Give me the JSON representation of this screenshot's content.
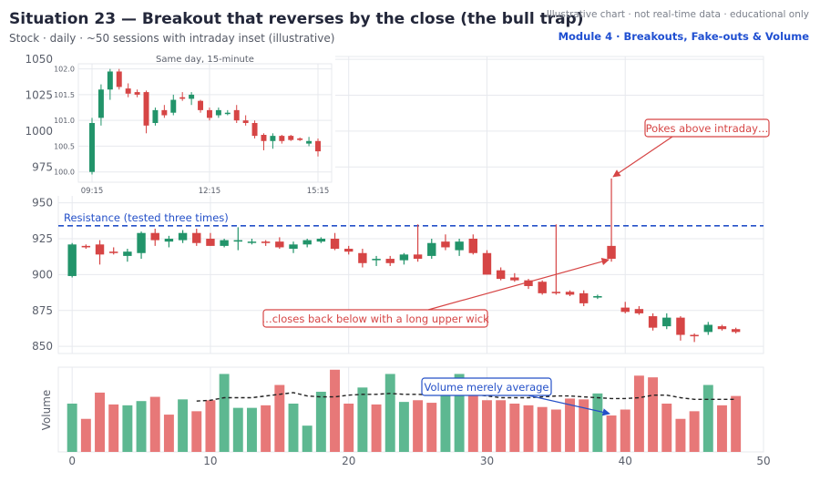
{
  "header": {
    "title": "Situation 23 — Breakout that reverses by the close (the bull trap)",
    "subtitle": "Stock · daily · ~50 sessions with intraday inset (illustrative)",
    "disclaimer": "Illustrative chart · not real-time data · educational only",
    "module": "Module 4 · Breakouts, Fake-outs & Volume"
  },
  "colors": {
    "up": "#22946a",
    "down": "#d64545",
    "vol_up": "#5db891",
    "vol_down": "#e77878",
    "resistance": "#2450c8",
    "annotation": "#d64545",
    "volume_note": "#2450c8",
    "grid": "#e7e9ee",
    "axis_text": "#5a5f6b"
  },
  "chart_data": [
    {
      "type": "candlestick",
      "name": "daily",
      "xlim": [
        -1,
        50
      ],
      "ylim": [
        845,
        1052
      ],
      "xticks": [
        0,
        10,
        20,
        30,
        40,
        50
      ],
      "yticks": [
        850,
        875,
        900,
        925,
        950,
        975,
        1000,
        1025,
        1050
      ],
      "grid": true,
      "candles": [
        {
          "x": 0,
          "o": 899,
          "h": 922,
          "l": 898,
          "c": 921
        },
        {
          "x": 1,
          "o": 920,
          "h": 921,
          "l": 918,
          "c": 919
        },
        {
          "x": 2,
          "o": 921,
          "h": 924,
          "l": 907,
          "c": 914
        },
        {
          "x": 3,
          "o": 916,
          "h": 919,
          "l": 914,
          "c": 915
        },
        {
          "x": 4,
          "o": 913,
          "h": 918,
          "l": 909,
          "c": 916
        },
        {
          "x": 5,
          "o": 915,
          "h": 930,
          "l": 911,
          "c": 929
        },
        {
          "x": 6,
          "o": 929,
          "h": 932,
          "l": 920,
          "c": 924
        },
        {
          "x": 7,
          "o": 923,
          "h": 927,
          "l": 919,
          "c": 925
        },
        {
          "x": 8,
          "o": 924,
          "h": 931,
          "l": 922,
          "c": 929
        },
        {
          "x": 9,
          "o": 929,
          "h": 932,
          "l": 920,
          "c": 922
        },
        {
          "x": 10,
          "o": 925,
          "h": 929,
          "l": 920,
          "c": 920
        },
        {
          "x": 11,
          "o": 920,
          "h": 925,
          "l": 919,
          "c": 924
        },
        {
          "x": 12,
          "o": 923,
          "h": 933,
          "l": 917,
          "c": 924
        },
        {
          "x": 13,
          "o": 923,
          "h": 925,
          "l": 921,
          "c": 923
        },
        {
          "x": 14,
          "o": 923,
          "h": 924,
          "l": 920,
          "c": 922
        },
        {
          "x": 15,
          "o": 923,
          "h": 926,
          "l": 918,
          "c": 919
        },
        {
          "x": 16,
          "o": 918,
          "h": 923,
          "l": 915,
          "c": 921
        },
        {
          "x": 17,
          "o": 921,
          "h": 925,
          "l": 919,
          "c": 924
        },
        {
          "x": 18,
          "o": 923,
          "h": 926,
          "l": 922,
          "c": 925
        },
        {
          "x": 19,
          "o": 925,
          "h": 929,
          "l": 917,
          "c": 918
        },
        {
          "x": 20,
          "o": 918,
          "h": 920,
          "l": 914,
          "c": 916
        },
        {
          "x": 21,
          "o": 915,
          "h": 918,
          "l": 905,
          "c": 908
        },
        {
          "x": 22,
          "o": 910,
          "h": 913,
          "l": 906,
          "c": 911
        },
        {
          "x": 23,
          "o": 911,
          "h": 913,
          "l": 906,
          "c": 908
        },
        {
          "x": 24,
          "o": 910,
          "h": 915,
          "l": 907,
          "c": 914
        },
        {
          "x": 25,
          "o": 914,
          "h": 935,
          "l": 909,
          "c": 911
        },
        {
          "x": 26,
          "o": 913,
          "h": 925,
          "l": 911,
          "c": 922
        },
        {
          "x": 27,
          "o": 923,
          "h": 928,
          "l": 917,
          "c": 919
        },
        {
          "x": 28,
          "o": 917,
          "h": 925,
          "l": 913,
          "c": 923
        },
        {
          "x": 29,
          "o": 925,
          "h": 928,
          "l": 914,
          "c": 915
        },
        {
          "x": 30,
          "o": 915,
          "h": 917,
          "l": 900,
          "c": 900
        },
        {
          "x": 31,
          "o": 903,
          "h": 905,
          "l": 896,
          "c": 897
        },
        {
          "x": 32,
          "o": 898,
          "h": 901,
          "l": 895,
          "c": 896
        },
        {
          "x": 33,
          "o": 896,
          "h": 897,
          "l": 890,
          "c": 892
        },
        {
          "x": 34,
          "o": 895,
          "h": 896,
          "l": 886,
          "c": 887
        },
        {
          "x": 35,
          "o": 888,
          "h": 935,
          "l": 886,
          "c": 887
        },
        {
          "x": 36,
          "o": 888,
          "h": 889,
          "l": 885,
          "c": 886
        },
        {
          "x": 37,
          "o": 887,
          "h": 889,
          "l": 878,
          "c": 880
        },
        {
          "x": 38,
          "o": 884,
          "h": 886,
          "l": 883,
          "c": 885
        },
        {
          "x": 39,
          "o": 920,
          "h": 967,
          "l": 909,
          "c": 911
        },
        {
          "x": 40,
          "o": 877,
          "h": 881,
          "l": 873,
          "c": 874
        },
        {
          "x": 41,
          "o": 876,
          "h": 878,
          "l": 872,
          "c": 873
        },
        {
          "x": 42,
          "o": 871,
          "h": 873,
          "l": 861,
          "c": 863
        },
        {
          "x": 43,
          "o": 864,
          "h": 873,
          "l": 862,
          "c": 870
        },
        {
          "x": 44,
          "o": 870,
          "h": 871,
          "l": 854,
          "c": 858
        },
        {
          "x": 45,
          "o": 858,
          "h": 859,
          "l": 853,
          "c": 857
        },
        {
          "x": 46,
          "o": 860,
          "h": 867,
          "l": 858,
          "c": 865
        },
        {
          "x": 47,
          "o": 864,
          "h": 865,
          "l": 861,
          "c": 862
        },
        {
          "x": 48,
          "o": 862,
          "h": 863,
          "l": 859,
          "c": 860
        }
      ],
      "resistance": {
        "value": 934,
        "label": "Resistance (tested three times)"
      },
      "annotations": [
        {
          "text": "Pokes above intraday…",
          "target_x": 39,
          "target_y": 967
        },
        {
          "text": "…closes back below with a long upper wick",
          "target_x": 39,
          "target_y": 911
        }
      ]
    },
    {
      "type": "bar",
      "name": "volume",
      "ylabel": "Volume",
      "xlim": [
        -1,
        50
      ],
      "ylim": [
        0,
        100
      ],
      "values": [
        57,
        39,
        70,
        56,
        55,
        60,
        65,
        44,
        62,
        48,
        61,
        92,
        52,
        52,
        55,
        79,
        57,
        31,
        71,
        97,
        57,
        76,
        56,
        92,
        59,
        61,
        58,
        81,
        92,
        76,
        61,
        61,
        57,
        55,
        53,
        50,
        63,
        62,
        69,
        43,
        50,
        90,
        88,
        57,
        39,
        48,
        79,
        55,
        66
      ],
      "up": [
        true,
        false,
        false,
        false,
        true,
        true,
        false,
        false,
        true,
        false,
        false,
        true,
        true,
        true,
        false,
        false,
        true,
        true,
        true,
        false,
        false,
        true,
        false,
        true,
        true,
        false,
        false,
        true,
        true,
        false,
        false,
        false,
        false,
        false,
        false,
        false,
        false,
        false,
        true,
        false,
        false,
        false,
        false,
        false,
        false,
        false,
        true,
        false,
        false
      ],
      "moving_average": [
        null,
        null,
        null,
        null,
        null,
        null,
        null,
        null,
        null,
        60,
        61,
        64,
        64,
        64,
        66,
        68,
        70,
        66,
        65,
        65,
        67,
        68,
        68,
        69,
        68,
        68,
        67,
        67,
        67,
        68,
        66,
        64,
        64,
        64,
        65,
        66,
        66,
        65,
        64,
        63,
        63,
        64,
        67,
        67,
        64,
        62,
        62,
        62,
        62
      ],
      "annotation": {
        "text": "Volume merely average",
        "target_x": 39
      }
    },
    {
      "type": "candlestick",
      "name": "intraday",
      "title": "Same day, 15-minute",
      "ylim": [
        99.8,
        102.1
      ],
      "yticks": [
        "102.0",
        "101.5",
        "101.0",
        "100.5",
        "100.0"
      ],
      "xticks": [
        "09:15",
        "12:15",
        "15:15"
      ],
      "candles": [
        {
          "o": 100.0,
          "h": 101.05,
          "l": 99.95,
          "c": 100.95
        },
        {
          "o": 101.05,
          "h": 101.7,
          "l": 100.9,
          "c": 101.6
        },
        {
          "o": 101.6,
          "h": 102.0,
          "l": 101.4,
          "c": 101.95
        },
        {
          "o": 101.95,
          "h": 102.0,
          "l": 101.6,
          "c": 101.65
        },
        {
          "o": 101.62,
          "h": 101.72,
          "l": 101.45,
          "c": 101.52
        },
        {
          "o": 101.55,
          "h": 101.6,
          "l": 101.45,
          "c": 101.5
        },
        {
          "o": 101.55,
          "h": 101.58,
          "l": 100.75,
          "c": 100.9
        },
        {
          "o": 100.95,
          "h": 101.25,
          "l": 100.9,
          "c": 101.2
        },
        {
          "o": 101.2,
          "h": 101.3,
          "l": 101.05,
          "c": 101.1
        },
        {
          "o": 101.15,
          "h": 101.5,
          "l": 101.1,
          "c": 101.4
        },
        {
          "o": 101.45,
          "h": 101.55,
          "l": 101.38,
          "c": 101.42
        },
        {
          "o": 101.42,
          "h": 101.55,
          "l": 101.3,
          "c": 101.5
        },
        {
          "o": 101.38,
          "h": 101.4,
          "l": 101.15,
          "c": 101.2
        },
        {
          "o": 101.2,
          "h": 101.25,
          "l": 101.0,
          "c": 101.05
        },
        {
          "o": 101.1,
          "h": 101.25,
          "l": 101.05,
          "c": 101.2
        },
        {
          "o": 101.15,
          "h": 101.2,
          "l": 101.1,
          "c": 101.15
        },
        {
          "o": 101.2,
          "h": 101.3,
          "l": 100.95,
          "c": 101.0
        },
        {
          "o": 101.0,
          "h": 101.1,
          "l": 100.9,
          "c": 100.95
        },
        {
          "o": 100.95,
          "h": 101.0,
          "l": 100.65,
          "c": 100.7
        },
        {
          "o": 100.72,
          "h": 100.75,
          "l": 100.42,
          "c": 100.6
        },
        {
          "o": 100.6,
          "h": 100.75,
          "l": 100.45,
          "c": 100.7
        },
        {
          "o": 100.7,
          "h": 100.72,
          "l": 100.55,
          "c": 100.6
        },
        {
          "o": 100.7,
          "h": 100.72,
          "l": 100.6,
          "c": 100.62
        },
        {
          "o": 100.65,
          "h": 100.67,
          "l": 100.6,
          "c": 100.62
        },
        {
          "o": 100.55,
          "h": 100.68,
          "l": 100.5,
          "c": 100.6
        },
        {
          "o": 100.6,
          "h": 100.65,
          "l": 100.3,
          "c": 100.4
        }
      ]
    }
  ]
}
